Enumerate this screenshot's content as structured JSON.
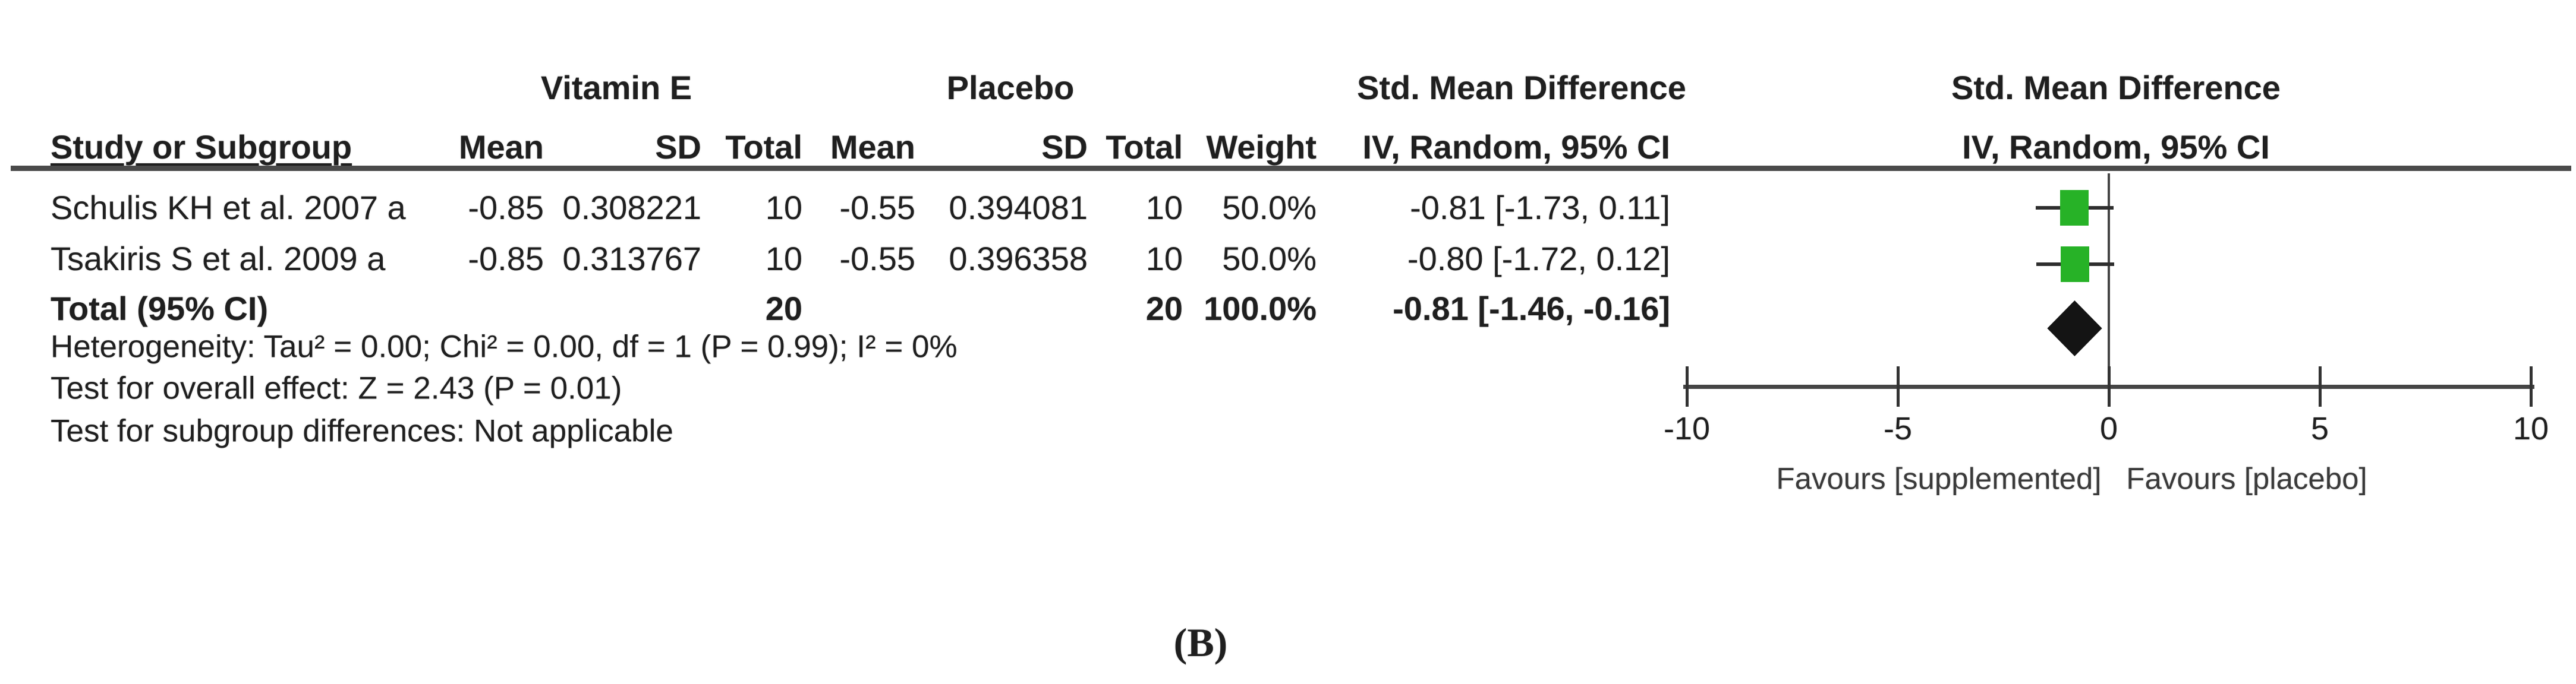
{
  "table": {
    "group_headers": {
      "vitamin_e": "Vitamin E",
      "placebo": "Placebo",
      "smd": "Std. Mean Difference"
    },
    "column_headers": {
      "study": "Study or Subgroup",
      "mean": "Mean",
      "sd": "SD",
      "total": "Total",
      "weight": "Weight",
      "iv": "IV, Random, 95% CI"
    },
    "rows": [
      {
        "study": "Schulis KH et al. 2007 a",
        "mean1": "-0.85",
        "sd1": "0.308221",
        "total1": "10",
        "mean2": "-0.55",
        "sd2": "0.394081",
        "total2": "10",
        "weight": "50.0%",
        "ci": "-0.81 [-1.73, 0.11]"
      },
      {
        "study": "Tsakiris S et al. 2009 a",
        "mean1": "-0.85",
        "sd1": "0.313767",
        "total1": "10",
        "mean2": "-0.55",
        "sd2": "0.396358",
        "total2": "10",
        "weight": "50.0%",
        "ci": "-0.80 [-1.72, 0.12]"
      }
    ],
    "total_row": {
      "label": "Total (95% CI)",
      "total1": "20",
      "total2": "20",
      "weight": "100.0%",
      "ci": "-0.81 [-1.46, -0.16]"
    },
    "footnotes": [
      "Heterogeneity: Tau² = 0.00; Chi² = 0.00, df = 1 (P = 0.99); I² = 0%",
      "Test for overall effect: Z = 2.43 (P = 0.01)",
      "Test for subgroup differences: Not applicable"
    ]
  },
  "plot": {
    "header_line1": "Std. Mean Difference",
    "header_line2": "IV, Random, 95% CI",
    "favours_left": "Favours [supplemented]",
    "favours_right": "Favours [placebo]"
  },
  "panel_label": "(B)",
  "colors": {
    "square": "#27b227",
    "diamond": "#141414",
    "axis": "#454545"
  },
  "chart_data": {
    "type": "scatter",
    "title": "Std. Mean Difference, IV, Random, 95% CI",
    "xlim": [
      -10,
      10
    ],
    "ticks": [
      -10,
      -5,
      0,
      5,
      10
    ],
    "zero_line": 0,
    "grid": false,
    "points": [
      {
        "study": "Schulis KH et al. 2007 a",
        "est": -0.81,
        "lo": -1.73,
        "hi": 0.11,
        "weight_pct": 50.0
      },
      {
        "study": "Tsakiris S et al. 2009 a",
        "est": -0.8,
        "lo": -1.72,
        "hi": 0.12,
        "weight_pct": 50.0
      }
    ],
    "diamond": {
      "est": -0.81,
      "lo": -1.46,
      "hi": -0.16
    },
    "axis_labels_bottom": [
      "Favours [supplemented]",
      "Favours [placebo]"
    ]
  }
}
